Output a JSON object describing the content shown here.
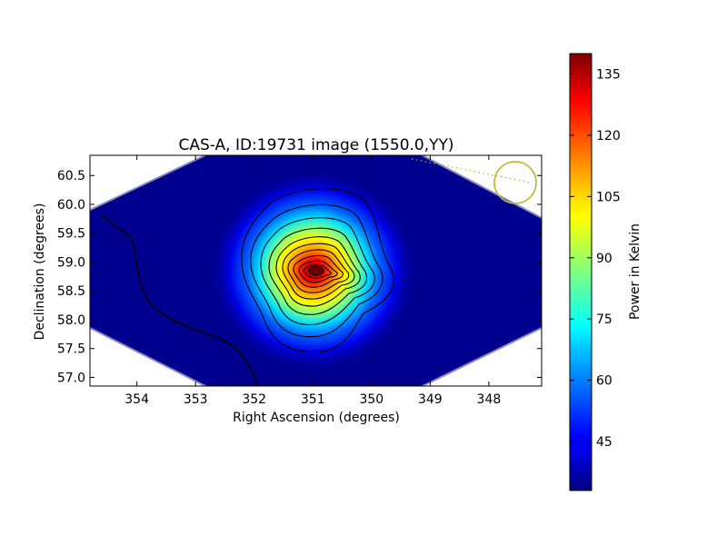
{
  "chart_data": {
    "type": "heatmap",
    "title": "CAS-A, ID:19731 image (1550.0,YY)",
    "xlabel": "Right Ascension (degrees)",
    "ylabel": "Declination (degrees)",
    "xlim": [
      354.8,
      347.1
    ],
    "ylim": [
      56.85,
      60.85
    ],
    "x_ticks": [
      354,
      353,
      352,
      351,
      350,
      349,
      348
    ],
    "y_ticks": [
      57.0,
      57.5,
      58.0,
      58.5,
      59.0,
      59.5,
      60.0,
      60.5
    ],
    "colorbar": {
      "label": "Power in Kelvin",
      "range": [
        33,
        140
      ],
      "ticks": [
        45,
        60,
        75,
        90,
        105,
        120,
        135
      ]
    },
    "source": {
      "name": "CAS-A",
      "ra": 350.85,
      "dec": 58.82,
      "peak": 140
    },
    "background_level": 33,
    "beam_circle": {
      "ra": 347.45,
      "dec": 60.38
    },
    "colors": {
      "contour": "#000000",
      "beam": "#b5b52a",
      "background": "#00008f"
    }
  }
}
